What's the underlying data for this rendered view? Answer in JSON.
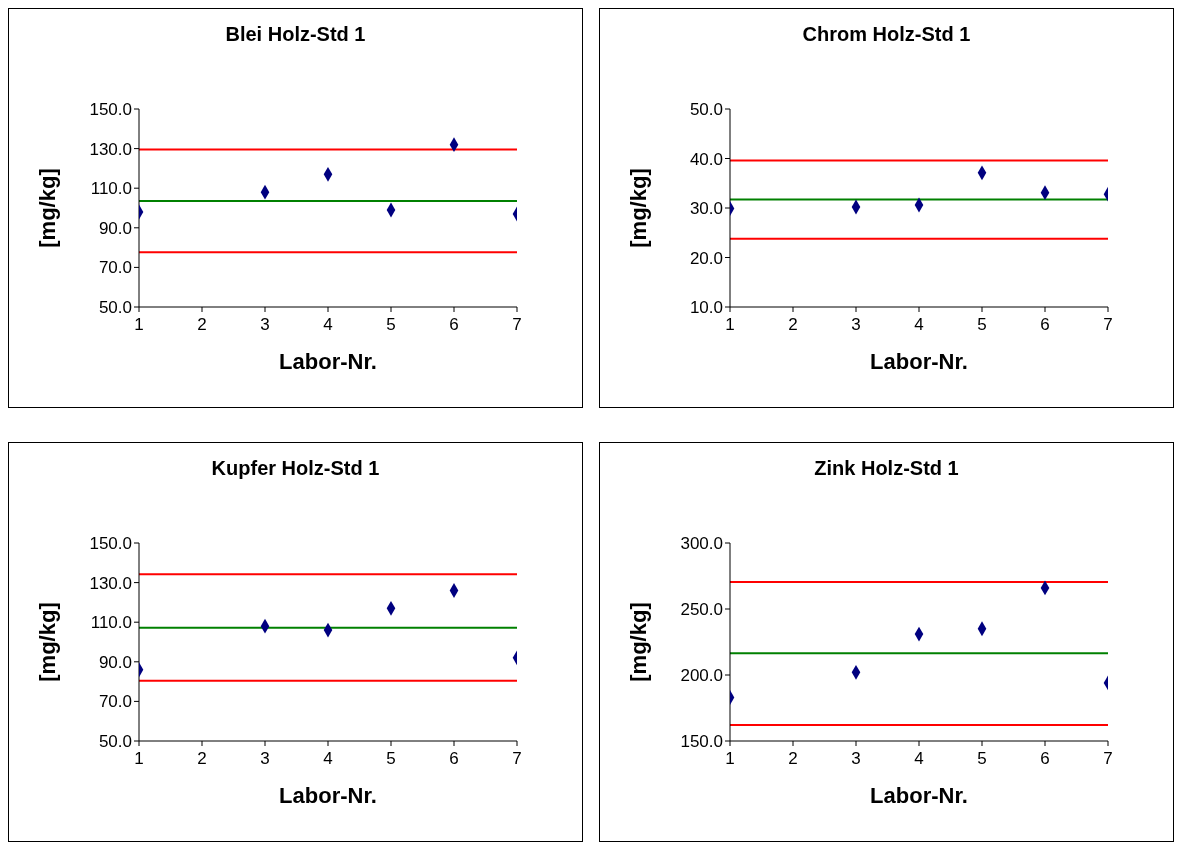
{
  "chart_data": [
    {
      "type": "scatter",
      "title": "Blei Holz-Std 1",
      "xlabel": "Labor-Nr.",
      "ylabel": "[mg/kg]",
      "x": [
        1,
        3,
        4,
        5,
        6,
        7
      ],
      "values": [
        98,
        108,
        117,
        99,
        132,
        97
      ],
      "color": "#000080",
      "marker": "diamond",
      "xlim": [
        1,
        7
      ],
      "xticks": [
        1,
        2,
        3,
        4,
        5,
        6,
        7
      ],
      "ylim": [
        50,
        150
      ],
      "yticks": [
        {
          "value": 50,
          "label": "50.0"
        },
        {
          "value": 70,
          "label": "70.0"
        },
        {
          "value": 90,
          "label": "90.0"
        },
        {
          "value": 110,
          "label": "110.0"
        },
        {
          "value": 130,
          "label": "130.0"
        },
        {
          "value": 150,
          "label": "150.0"
        }
      ],
      "grid": false,
      "legend": false,
      "ref_lines": [
        {
          "axis": "y",
          "value": 129.5,
          "color": "#ff0000"
        },
        {
          "axis": "y",
          "value": 103.5,
          "color": "#008000"
        },
        {
          "axis": "y",
          "value": 77.6,
          "color": "#ff0000"
        }
      ]
    },
    {
      "type": "scatter",
      "title": "Chrom Holz-Std 1",
      "xlabel": "Labor-Nr.",
      "ylabel": "[mg/kg]",
      "x": [
        1,
        3,
        4,
        5,
        6,
        7
      ],
      "values": [
        29.9,
        30.2,
        30.6,
        37.1,
        33.1,
        32.8
      ],
      "color": "#000080",
      "marker": "diamond",
      "xlim": [
        1,
        7
      ],
      "xticks": [
        1,
        2,
        3,
        4,
        5,
        6,
        7
      ],
      "ylim": [
        10,
        50
      ],
      "yticks": [
        {
          "value": 10,
          "label": "10.0"
        },
        {
          "value": 20,
          "label": "20.0"
        },
        {
          "value": 30,
          "label": "30.0"
        },
        {
          "value": 40,
          "label": "40.0"
        },
        {
          "value": 50,
          "label": "50.0"
        }
      ],
      "grid": false,
      "legend": false,
      "ref_lines": [
        {
          "axis": "y",
          "value": 39.6,
          "color": "#ff0000"
        },
        {
          "axis": "y",
          "value": 31.7,
          "color": "#008000"
        },
        {
          "axis": "y",
          "value": 23.8,
          "color": "#ff0000"
        }
      ]
    },
    {
      "type": "scatter",
      "title": "Kupfer Holz-Std 1",
      "xlabel": "Labor-Nr.",
      "ylabel": "[mg/kg]",
      "x": [
        1,
        3,
        4,
        5,
        6,
        7
      ],
      "values": [
        86,
        108,
        106,
        117,
        126,
        92
      ],
      "color": "#000080",
      "marker": "diamond",
      "xlim": [
        1,
        7
      ],
      "xticks": [
        1,
        2,
        3,
        4,
        5,
        6,
        7
      ],
      "ylim": [
        50,
        150
      ],
      "yticks": [
        {
          "value": 50,
          "label": "50.0"
        },
        {
          "value": 70,
          "label": "70.0"
        },
        {
          "value": 90,
          "label": "90.0"
        },
        {
          "value": 110,
          "label": "110.0"
        },
        {
          "value": 130,
          "label": "130.0"
        },
        {
          "value": 150,
          "label": "150.0"
        }
      ],
      "grid": false,
      "legend": false,
      "ref_lines": [
        {
          "axis": "y",
          "value": 134.2,
          "color": "#ff0000"
        },
        {
          "axis": "y",
          "value": 107.2,
          "color": "#008000"
        },
        {
          "axis": "y",
          "value": 80.4,
          "color": "#ff0000"
        }
      ]
    },
    {
      "type": "scatter",
      "title": "Zink Holz-Std 1",
      "xlabel": "Labor-Nr.",
      "ylabel": "[mg/kg]",
      "x": [
        1,
        3,
        4,
        5,
        6,
        7
      ],
      "values": [
        183,
        202,
        231,
        235,
        266,
        194
      ],
      "color": "#000080",
      "marker": "diamond",
      "xlim": [
        1,
        7
      ],
      "xticks": [
        1,
        2,
        3,
        4,
        5,
        6,
        7
      ],
      "ylim": [
        150,
        300
      ],
      "yticks": [
        {
          "value": 150,
          "label": "150.0"
        },
        {
          "value": 200,
          "label": "200.0"
        },
        {
          "value": 250,
          "label": "250.0"
        },
        {
          "value": 300,
          "label": "300.0"
        }
      ],
      "grid": false,
      "legend": false,
      "ref_lines": [
        {
          "axis": "y",
          "value": 270.4,
          "color": "#ff0000"
        },
        {
          "axis": "y",
          "value": 216.4,
          "color": "#008000"
        },
        {
          "axis": "y",
          "value": 162.2,
          "color": "#ff0000"
        }
      ]
    }
  ]
}
